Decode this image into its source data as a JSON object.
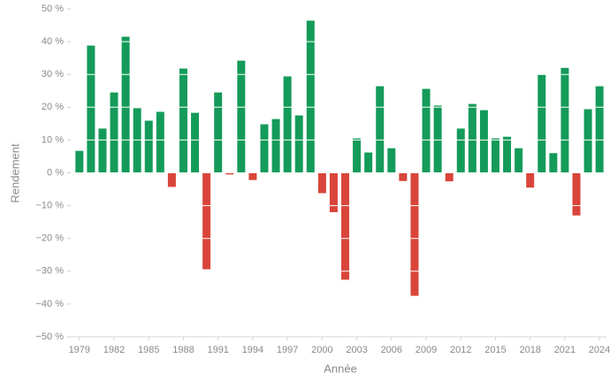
{
  "chart_data": {
    "type": "bar",
    "x_label": "Année",
    "y_label": "Rendement",
    "x": [
      1979,
      1980,
      1981,
      1982,
      1983,
      1984,
      1985,
      1986,
      1987,
      1988,
      1989,
      1990,
      1991,
      1992,
      1993,
      1994,
      1995,
      1996,
      1997,
      1998,
      1999,
      2000,
      2001,
      2002,
      2003,
      2004,
      2005,
      2006,
      2007,
      2008,
      2009,
      2010,
      2011,
      2012,
      2013,
      2014,
      2015,
      2016,
      2017,
      2018,
      2019,
      2020,
      2021,
      2022,
      2023,
      2024
    ],
    "values": [
      6.7,
      38.8,
      13.5,
      24.5,
      41.5,
      19.7,
      15.9,
      18.6,
      -4.3,
      31.8,
      18.3,
      -29.4,
      24.5,
      -0.5,
      34.2,
      -2.2,
      14.8,
      16.4,
      29.4,
      17.5,
      46.4,
      -6.2,
      -12,
      -32.6,
      10.5,
      6.2,
      26.4,
      7.5,
      -2.5,
      -37.5,
      25.6,
      20.5,
      -2.6,
      13.5,
      21,
      19.1,
      10.5,
      11,
      7.5,
      -4.5,
      30,
      6,
      32,
      -13,
      19.4,
      26.4
    ],
    "positive_color": "#149b5a",
    "negative_color": "#d9453a",
    "xlim": [
      1978.25,
      2024.6
    ],
    "xticks": [
      1979,
      1982,
      1985,
      1988,
      1991,
      1994,
      1997,
      2000,
      2003,
      2006,
      2009,
      2012,
      2015,
      2018,
      2021,
      2024
    ],
    "ylim": [
      -50,
      50
    ],
    "yticks": [
      {
        "value": -50,
        "label": "−50 %"
      },
      {
        "value": -40,
        "label": "−40 %"
      },
      {
        "value": -30,
        "label": "−30 %"
      },
      {
        "value": -20,
        "label": "−20 %"
      },
      {
        "value": -10,
        "label": "−10 %"
      },
      {
        "value": 0,
        "label": "0 %"
      },
      {
        "value": 10,
        "label": "10 %"
      },
      {
        "value": 20,
        "label": "20 %"
      },
      {
        "value": 30,
        "label": "30 %"
      },
      {
        "value": 40,
        "label": "40 %"
      },
      {
        "value": 50,
        "label": "50 %"
      }
    ],
    "grid": true
  }
}
